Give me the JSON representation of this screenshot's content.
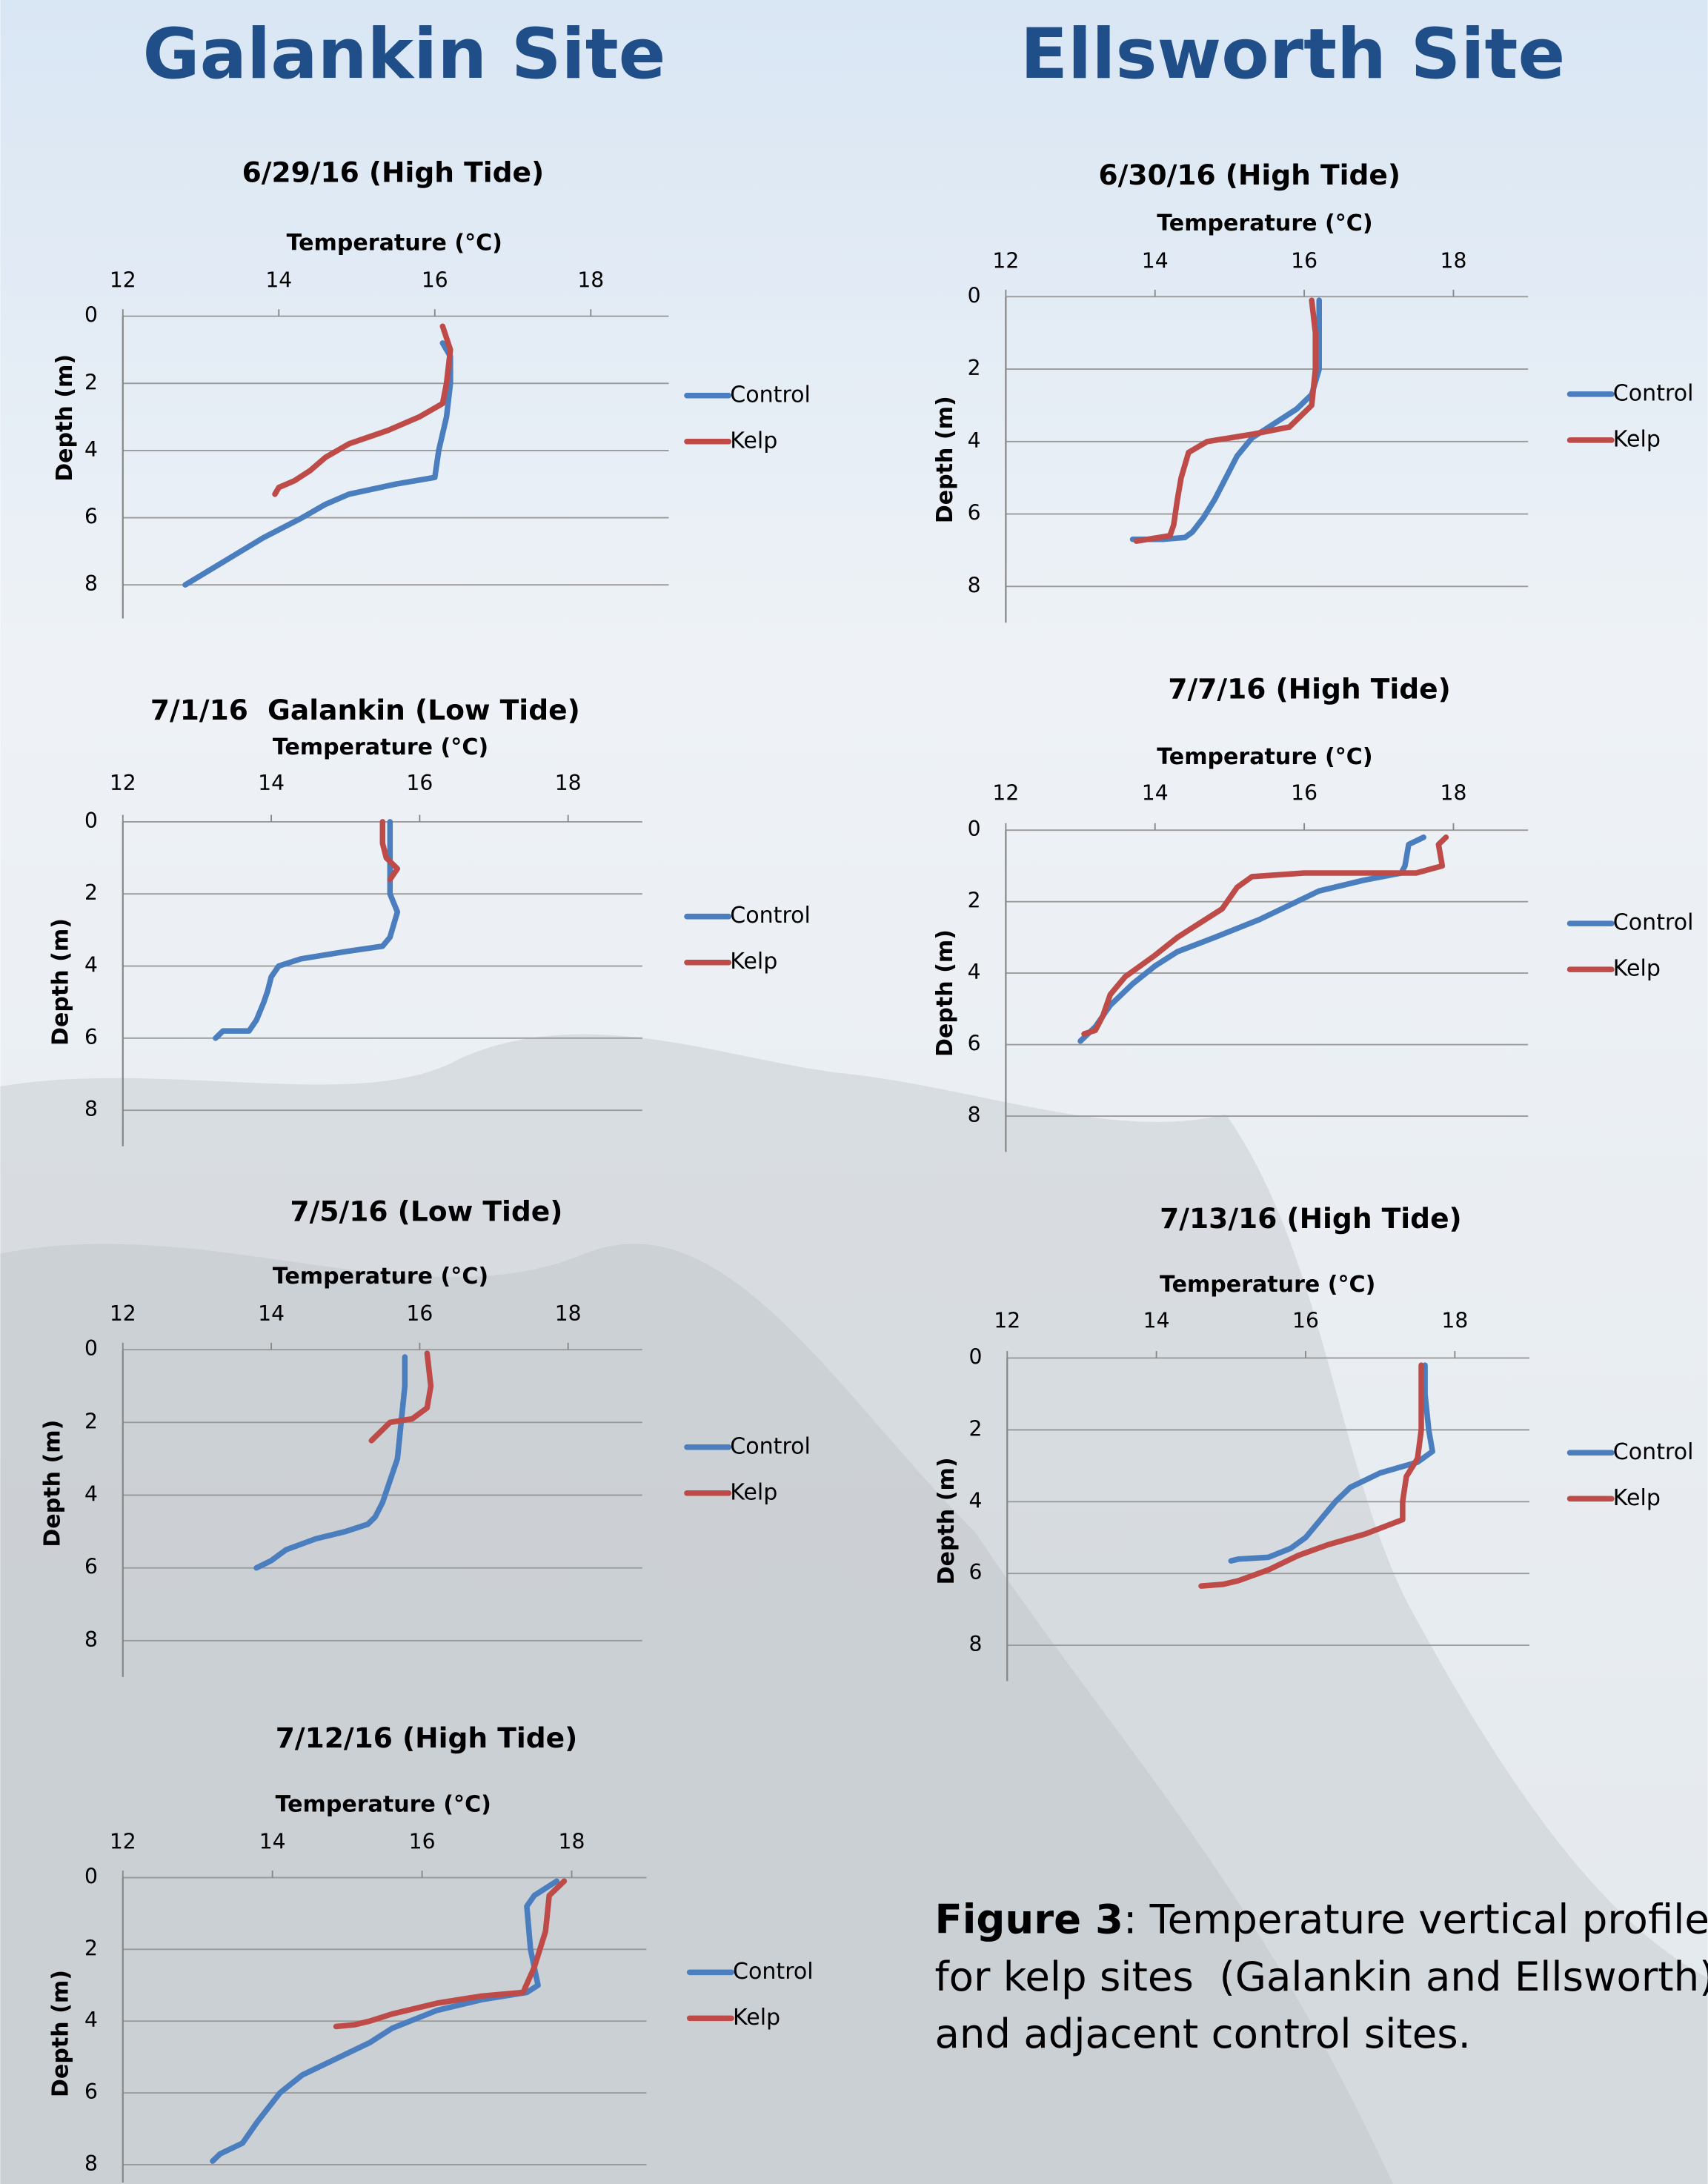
{
  "headings": {
    "left": "Galankin Site",
    "right": "Ellsworth Site"
  },
  "caption": {
    "label": "Figure 3",
    "lines": [
      ": Temperature vertical profiles",
      "for kelp sites  (Galankin and Ellsworth)",
      "and adjacent control sites."
    ]
  },
  "chart_data": [
    {
      "type": "line",
      "title": "6/29/16 (High Tide)",
      "x_label": "Temperature (°C)",
      "y_label": "Depth (m)",
      "xlim": [
        12,
        19
      ],
      "xticks": [
        12,
        14,
        16,
        18
      ],
      "ylim": [
        0,
        9
      ],
      "yticks": [
        0,
        2,
        4,
        6,
        8
      ],
      "y_inverted": true,
      "grid": true,
      "series": [
        {
          "name": "Control",
          "color": "#4a7ebf",
          "x": [
            16.1,
            16.2,
            16.2,
            16.15,
            16.05,
            16.0,
            15.5,
            14.9,
            14.6,
            14.3,
            13.8,
            13.3,
            12.8
          ],
          "values": [
            0.8,
            1.2,
            2,
            3,
            4,
            4.8,
            5.0,
            5.3,
            5.6,
            6.0,
            6.6,
            7.3,
            8.0
          ]
        },
        {
          "name": "Kelp",
          "color": "#be4b48",
          "x": [
            16.1,
            16.2,
            16.15,
            16.1,
            15.8,
            15.4,
            14.9,
            14.6,
            14.4,
            14.2,
            14.0,
            13.95
          ],
          "values": [
            0.3,
            1,
            2,
            2.6,
            3.0,
            3.4,
            3.8,
            4.2,
            4.6,
            4.9,
            5.1,
            5.3
          ]
        }
      ]
    },
    {
      "type": "line",
      "title": "7/1/16  Galankin (Low Tide)",
      "x_label": "Temperature (°C)",
      "y_label": "Depth (m)",
      "xlim": [
        12,
        19
      ],
      "xticks": [
        12,
        14,
        16,
        18
      ],
      "ylim": [
        0,
        9
      ],
      "yticks": [
        0,
        2,
        4,
        6,
        8
      ],
      "y_inverted": true,
      "grid": true,
      "series": [
        {
          "name": "Control",
          "color": "#4a7ebf",
          "x": [
            15.6,
            15.6,
            15.6,
            15.7,
            15.6,
            15.5,
            15.0,
            14.4,
            14.1,
            14.0,
            13.95,
            13.9,
            13.8,
            13.7,
            13.35,
            13.25
          ],
          "values": [
            0,
            1,
            2,
            2.5,
            3.2,
            3.45,
            3.6,
            3.8,
            4.0,
            4.3,
            4.7,
            5.0,
            5.5,
            5.8,
            5.8,
            6.0
          ]
        },
        {
          "name": "Kelp",
          "color": "#be4b48",
          "x": [
            15.5,
            15.5,
            15.55,
            15.7,
            15.6
          ],
          "values": [
            0,
            0.6,
            1.0,
            1.3,
            1.6
          ]
        }
      ]
    },
    {
      "type": "line",
      "title": "7/5/16 (Low Tide)",
      "x_label": "Temperature (°C)",
      "y_label": "Depth (m)",
      "xlim": [
        12,
        19
      ],
      "xticks": [
        12,
        14,
        16,
        18
      ],
      "ylim": [
        0,
        9
      ],
      "yticks": [
        0,
        2,
        4,
        6,
        8
      ],
      "y_inverted": true,
      "grid": true,
      "series": [
        {
          "name": "Control",
          "color": "#4a7ebf",
          "x": [
            15.8,
            15.8,
            15.75,
            15.7,
            15.6,
            15.5,
            15.4,
            15.3,
            15.0,
            14.6,
            14.2,
            14.0,
            13.8
          ],
          "values": [
            0.2,
            1,
            2,
            3,
            3.6,
            4.2,
            4.6,
            4.8,
            5.0,
            5.2,
            5.5,
            5.8,
            6.0
          ]
        },
        {
          "name": "Kelp",
          "color": "#be4b48",
          "x": [
            16.1,
            16.15,
            16.1,
            15.9,
            15.6,
            15.5,
            15.35
          ],
          "values": [
            0.1,
            1,
            1.6,
            1.9,
            2.0,
            2.2,
            2.5
          ]
        }
      ]
    },
    {
      "type": "line",
      "title": "7/12/16 (High Tide)",
      "x_label": "Temperature (°C)",
      "y_label": "Depth (m)",
      "xlim": [
        12,
        19
      ],
      "xticks": [
        12,
        14,
        16,
        18
      ],
      "ylim": [
        0,
        8.5
      ],
      "yticks": [
        0,
        2,
        4,
        6,
        8
      ],
      "y_inverted": true,
      "grid": true,
      "series": [
        {
          "name": "Control",
          "color": "#4a7ebf",
          "x": [
            17.8,
            17.5,
            17.4,
            17.45,
            17.55,
            17.4,
            16.8,
            16.2,
            15.6,
            15.3,
            14.9,
            14.4,
            14.1,
            13.8,
            13.6,
            13.3,
            13.2
          ],
          "values": [
            0.1,
            0.5,
            0.8,
            2,
            3.0,
            3.2,
            3.4,
            3.7,
            4.2,
            4.6,
            5.0,
            5.5,
            6.0,
            6.8,
            7.4,
            7.7,
            7.9
          ]
        },
        {
          "name": "Kelp",
          "color": "#be4b48",
          "x": [
            17.9,
            17.7,
            17.65,
            17.5,
            17.35,
            16.8,
            16.2,
            15.6,
            15.3,
            15.1,
            14.85
          ],
          "values": [
            0.1,
            0.5,
            1.5,
            2.5,
            3.2,
            3.3,
            3.5,
            3.8,
            4.0,
            4.1,
            4.15
          ]
        }
      ]
    },
    {
      "type": "line",
      "title": "6/30/16 (High Tide)",
      "x_label": "Temperature (°C)",
      "y_label": "Depth (m)",
      "xlim": [
        12,
        19
      ],
      "xticks": [
        12,
        14,
        16,
        18
      ],
      "ylim": [
        0,
        9
      ],
      "yticks": [
        0,
        2,
        4,
        6,
        8
      ],
      "y_inverted": true,
      "grid": true,
      "series": [
        {
          "name": "Control",
          "color": "#4a7ebf",
          "x": [
            16.2,
            16.2,
            16.2,
            16.1,
            15.9,
            15.6,
            15.3,
            15.1,
            14.95,
            14.8,
            14.65,
            14.5,
            14.4,
            14.1,
            13.7
          ],
          "values": [
            0.1,
            1,
            2,
            2.7,
            3.1,
            3.5,
            3.9,
            4.4,
            5.0,
            5.6,
            6.1,
            6.5,
            6.65,
            6.7,
            6.7
          ]
        },
        {
          "name": "Kelp",
          "color": "#be4b48",
          "x": [
            16.1,
            16.15,
            16.15,
            16.1,
            15.8,
            15.3,
            14.7,
            14.45,
            14.35,
            14.3,
            14.25,
            14.2,
            13.9,
            13.75
          ],
          "values": [
            0.1,
            1,
            2,
            3.0,
            3.6,
            3.8,
            4.0,
            4.3,
            5.0,
            5.6,
            6.3,
            6.6,
            6.7,
            6.75
          ]
        }
      ]
    },
    {
      "type": "line",
      "title": "7/7/16 (High Tide)",
      "x_label": "Temperature (°C)",
      "y_label": "Depth (m)",
      "xlim": [
        12,
        19
      ],
      "xticks": [
        12,
        14,
        16,
        18
      ],
      "ylim": [
        0,
        9
      ],
      "yticks": [
        0,
        2,
        4,
        6,
        8
      ],
      "y_inverted": true,
      "grid": true,
      "series": [
        {
          "name": "Control",
          "color": "#4a7ebf",
          "x": [
            17.6,
            17.4,
            17.35,
            17.3,
            16.8,
            16.2,
            15.8,
            15.4,
            14.8,
            14.3,
            14.0,
            13.7,
            13.4,
            13.2,
            13.0
          ],
          "values": [
            0.2,
            0.4,
            1.0,
            1.2,
            1.4,
            1.7,
            2.1,
            2.5,
            3.0,
            3.4,
            3.8,
            4.3,
            4.9,
            5.5,
            5.9
          ]
        },
        {
          "name": "Kelp",
          "color": "#be4b48",
          "x": [
            17.9,
            17.8,
            17.85,
            17.5,
            16.0,
            15.3,
            15.1,
            14.9,
            14.6,
            14.3,
            14.0,
            13.6,
            13.4,
            13.3,
            13.2,
            13.05
          ],
          "values": [
            0.2,
            0.4,
            1.0,
            1.2,
            1.2,
            1.3,
            1.6,
            2.2,
            2.6,
            3.0,
            3.5,
            4.1,
            4.6,
            5.2,
            5.6,
            5.7
          ]
        }
      ]
    },
    {
      "type": "line",
      "title": "7/13/16 (High Tide)",
      "x_label": "Temperature (°C)",
      "y_label": "Depth (m)",
      "xlim": [
        12,
        19
      ],
      "xticks": [
        12,
        14,
        16,
        18
      ],
      "ylim": [
        0,
        9
      ],
      "yticks": [
        0,
        2,
        4,
        6,
        8
      ],
      "y_inverted": true,
      "grid": true,
      "series": [
        {
          "name": "Control",
          "color": "#4a7ebf",
          "x": [
            17.6,
            17.6,
            17.65,
            17.7,
            17.5,
            17.0,
            16.6,
            16.4,
            16.2,
            16.0,
            15.8,
            15.5,
            15.1,
            15.0
          ],
          "values": [
            0.2,
            1,
            2,
            2.6,
            2.9,
            3.2,
            3.6,
            4.0,
            4.5,
            5.0,
            5.3,
            5.55,
            5.6,
            5.65
          ]
        },
        {
          "name": "Kelp",
          "color": "#be4b48",
          "x": [
            17.55,
            17.55,
            17.55,
            17.5,
            17.35,
            17.3,
            17.3,
            16.8,
            16.3,
            15.9,
            15.5,
            15.1,
            14.9,
            14.6
          ],
          "values": [
            0.2,
            1,
            2,
            2.8,
            3.3,
            4.0,
            4.5,
            4.9,
            5.2,
            5.5,
            5.9,
            6.2,
            6.3,
            6.35
          ]
        }
      ]
    }
  ]
}
